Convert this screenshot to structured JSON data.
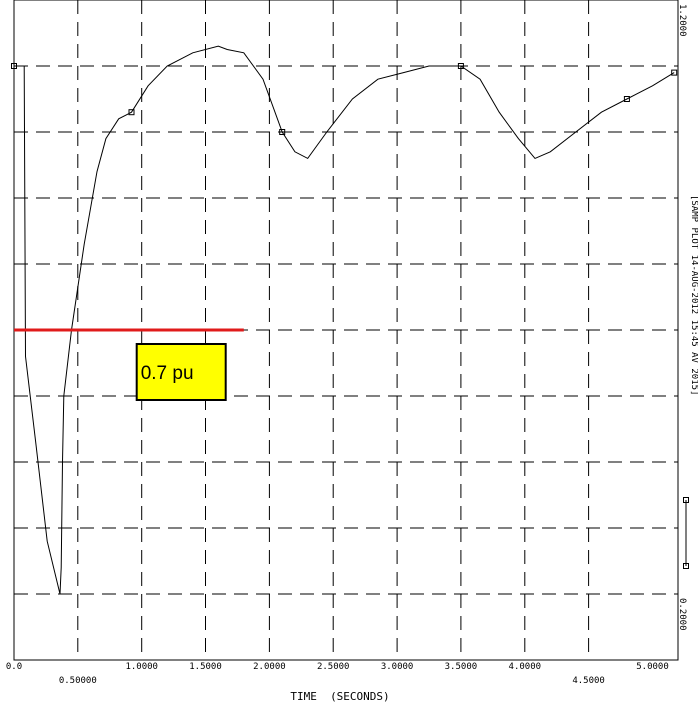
{
  "chart_data": {
    "type": "line",
    "xlabel": "TIME  (SECONDS)",
    "xlim": [
      0,
      5.2
    ],
    "ylim": [
      0.2,
      1.2
    ],
    "grid": true,
    "x_ticks_row1": [
      "0.0",
      "1.0000",
      "1.5000",
      "2.0000",
      "2.5000",
      "3.0000",
      "3.5000",
      "4.0000",
      "5.0000"
    ],
    "x_ticks_row2": [
      "0.50000",
      "4.5000"
    ],
    "y_tick_top": "1.2000",
    "y_tick_bottom": "0.2000",
    "side_label": "[SAMP PLOT 14-AUG-2012 15:45 AV 2015]",
    "threshold": {
      "y": 0.7,
      "x_start": 0.0,
      "x_end": 1.8,
      "color": "#e01b1b"
    },
    "callout": {
      "text": "0.7 pu",
      "color": "#ffff00"
    },
    "series": [
      {
        "color": "#000000",
        "marker_x": [
          0.0,
          0.92,
          2.1,
          3.5,
          4.8,
          5.17
        ],
        "points": [
          [
            0.0,
            1.1
          ],
          [
            0.08,
            1.1
          ],
          [
            0.09,
            0.66
          ],
          [
            0.17,
            0.53
          ],
          [
            0.26,
            0.38
          ],
          [
            0.36,
            0.3
          ],
          [
            0.37,
            0.34
          ],
          [
            0.38,
            0.5
          ],
          [
            0.39,
            0.6
          ],
          [
            0.45,
            0.7
          ],
          [
            0.55,
            0.83
          ],
          [
            0.65,
            0.94
          ],
          [
            0.72,
            0.99
          ],
          [
            0.82,
            1.02
          ],
          [
            0.92,
            1.03
          ],
          [
            1.05,
            1.07
          ],
          [
            1.2,
            1.1
          ],
          [
            1.4,
            1.12
          ],
          [
            1.6,
            1.13
          ],
          [
            1.67,
            1.125
          ],
          [
            1.8,
            1.12
          ],
          [
            1.95,
            1.08
          ],
          [
            2.1,
            1.0
          ],
          [
            2.2,
            0.97
          ],
          [
            2.3,
            0.96
          ],
          [
            2.45,
            1.0
          ],
          [
            2.65,
            1.05
          ],
          [
            2.85,
            1.08
          ],
          [
            3.05,
            1.09
          ],
          [
            3.25,
            1.1
          ],
          [
            3.5,
            1.1
          ],
          [
            3.65,
            1.08
          ],
          [
            3.8,
            1.03
          ],
          [
            3.95,
            0.99
          ],
          [
            4.08,
            0.96
          ],
          [
            4.2,
            0.97
          ],
          [
            4.4,
            1.0
          ],
          [
            4.6,
            1.03
          ],
          [
            4.8,
            1.05
          ],
          [
            5.0,
            1.07
          ],
          [
            5.17,
            1.09
          ]
        ]
      }
    ]
  }
}
